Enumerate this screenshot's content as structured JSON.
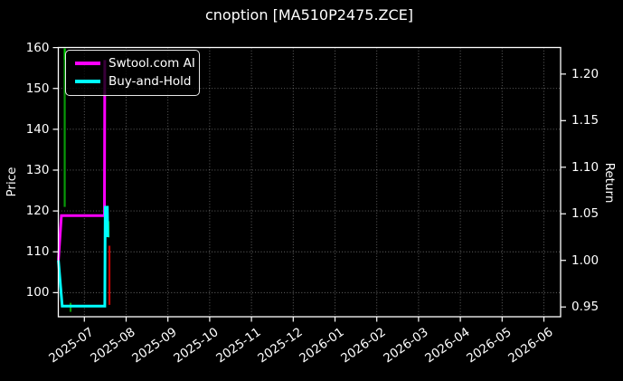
{
  "title": "cnoption [MA510P2475.ZCE]",
  "legend": {
    "items": [
      {
        "label": "Swtool.com AI",
        "color": "#ff00ff"
      },
      {
        "label": "Buy-and-Hold",
        "color": "#00ffff"
      }
    ]
  },
  "colors": {
    "background": "#000000",
    "text": "#ffffff",
    "grid": "#6b6b6b",
    "ai_line": "#ff00ff",
    "buy_hold_line": "#00ffff",
    "price_up": "#089908",
    "price_up_bright": "#00cc00",
    "price_down": "#cc0000"
  },
  "chart_data": {
    "type": "line",
    "title": "cnoption [MA510P2475.ZCE]",
    "grid": true,
    "legend_position": "upper left",
    "x_axis": {
      "tick_labels": [
        "2025-07",
        "2025-08",
        "2025-09",
        "2025-10",
        "2025-11",
        "2025-12",
        "2026-01",
        "2026-02",
        "2026-03",
        "2026-04",
        "2026-05",
        "2026-06"
      ],
      "xlim_months": [
        -0.623,
        11.4
      ],
      "note_x_unit": "months since 2025-07"
    },
    "left_axis": {
      "label": "Price",
      "ticks": [
        160,
        150,
        140,
        130,
        120,
        110,
        100
      ],
      "ylim": [
        94.1,
        160.02
      ]
    },
    "right_axis": {
      "label": "Return",
      "tick_labels": [
        "1.20",
        "1.15",
        "1.10",
        "1.05",
        "1.00",
        "0.95"
      ],
      "ticks": [
        1.2,
        1.15,
        1.1,
        1.05,
        1.0,
        0.95
      ],
      "ylim": [
        0.9395,
        1.2285
      ]
    },
    "series": [
      {
        "name": "Swtool.com AI",
        "axis": "return",
        "color": "#ff00ff",
        "points": [
          [
            -0.62,
            1.0
          ],
          [
            -0.55,
            1.048
          ],
          [
            0.48,
            1.048
          ],
          [
            0.49,
            1.215
          ]
        ]
      },
      {
        "name": "Buy-and-Hold",
        "axis": "return",
        "color": "#00ffff",
        "points": [
          [
            -0.62,
            1.0
          ],
          [
            -0.53,
            0.951
          ],
          [
            0.49,
            0.951
          ],
          [
            0.5,
            1.057
          ],
          [
            0.55,
            1.057
          ],
          [
            0.56,
            1.025
          ]
        ]
      }
    ],
    "price_segments": [
      {
        "x": -0.47,
        "from": 121.0,
        "to": 159.8,
        "color": "#089908"
      },
      {
        "x": -0.47,
        "from": 157.0,
        "to": 159.8,
        "color": "#00cc00"
      },
      {
        "x": -0.33,
        "from": 95.3,
        "to": 97.5,
        "color": "#089908"
      },
      {
        "x": 0.58,
        "from": 113.5,
        "to": 117.5,
        "color": "#089908"
      },
      {
        "x": 0.6,
        "from": 97.0,
        "to": 111.5,
        "color": "#cc0000"
      }
    ]
  }
}
